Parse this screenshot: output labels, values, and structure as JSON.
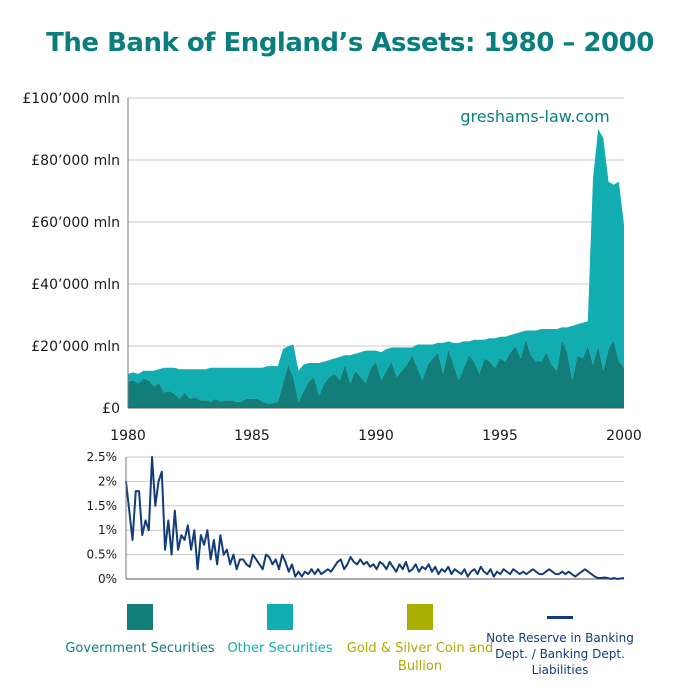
{
  "title": "The Bank of England’s Assets: 1980 – 2000",
  "watermark": "greshams-law.com",
  "colors": {
    "title": "#0a7e7e",
    "government": "#137d7a",
    "other": "#11adb0",
    "gold": "#a9ae00",
    "reserve": "#133d7a"
  },
  "chart_data": [
    {
      "type": "area",
      "stacked": true,
      "x_start": 1980,
      "x_end": 2000,
      "xlim": [
        1980,
        2000
      ],
      "ylim": [
        0,
        100000
      ],
      "x_ticks": [
        "1980",
        "1985",
        "1990",
        "1995",
        "2000"
      ],
      "y_ticks": [
        "£0",
        "£20’000 mln",
        "£40’000 mln",
        "£60’000 mln",
        "£80’000 mln",
        "£100’000 mln"
      ],
      "grid": true,
      "series": [
        {
          "name": "Government Securities",
          "values": [
            8500,
            9000,
            8000,
            9500,
            9000,
            7000,
            8000,
            5000,
            5500,
            4500,
            3000,
            5000,
            3000,
            3500,
            2500,
            2500,
            2000,
            3000,
            2000,
            2500,
            2500,
            2000,
            2000,
            3000,
            3000,
            3000,
            2000,
            1500,
            1500,
            2000,
            8000,
            14000,
            10000,
            2000,
            5500,
            8500,
            10000,
            4000,
            8000,
            10000,
            11000,
            9000,
            14000,
            8000,
            12000,
            10000,
            8000,
            13000,
            15000,
            9000,
            12000,
            15000,
            10000,
            12000,
            14000,
            17000,
            13000,
            9000,
            14000,
            16000,
            18000,
            11000,
            19000,
            14000,
            9000,
            13000,
            17000,
            15000,
            11000,
            16000,
            15000,
            13000,
            16000,
            15000,
            18000,
            20000,
            16000,
            22000,
            17000,
            15000,
            15000,
            18000,
            14000,
            12000,
            22000,
            18000,
            9000,
            17000,
            16000,
            20000,
            14000,
            20000,
            12000,
            19000,
            22000,
            15000,
            13000
          ]
        },
        {
          "name": "Other Securities",
          "values": [
            2500,
            2500,
            3000,
            2500,
            3000,
            5000,
            4500,
            8000,
            7500,
            8500,
            9500,
            7500,
            9500,
            9000,
            10000,
            10000,
            11000,
            10000,
            11000,
            10500,
            10500,
            11000,
            11000,
            10000,
            10000,
            10000,
            11000,
            12000,
            12000,
            11500,
            11000,
            6000,
            10500,
            10000,
            8500,
            6000,
            4500,
            10500,
            7000,
            5500,
            5000,
            7500,
            3000,
            9000,
            5500,
            8000,
            10500,
            5500,
            3500,
            9000,
            7000,
            4500,
            9500,
            7500,
            5500,
            2500,
            7500,
            11500,
            6500,
            4500,
            3000,
            10000,
            2500,
            7000,
            12000,
            8500,
            4500,
            7000,
            11000,
            6000,
            7500,
            9500,
            7000,
            8000,
            5500,
            4000,
            8500,
            3000,
            8000,
            10000,
            10500,
            7500,
            11500,
            13500,
            4000,
            8000,
            17500,
            10000,
            11500,
            8000,
            60000,
            70000,
            75000,
            54000,
            50000,
            58000,
            46000
          ]
        },
        {
          "name": "Gold & Silver Coin and Bullion",
          "values": [
            0,
            0,
            0,
            0,
            0,
            0,
            0,
            0,
            0,
            0,
            0,
            0,
            0,
            0,
            0,
            0,
            0,
            0,
            0,
            0,
            0,
            0,
            0,
            0,
            0,
            0,
            0,
            0,
            0,
            0,
            0,
            0,
            0,
            0,
            0,
            0,
            0,
            0,
            0,
            0,
            0,
            0,
            0,
            0,
            0,
            0,
            0,
            0,
            0,
            0,
            0,
            0,
            0,
            0,
            0,
            0,
            0,
            0,
            0,
            0,
            0,
            0,
            0,
            0,
            0,
            0,
            0,
            0,
            0,
            0,
            0,
            0,
            0,
            0,
            0,
            0,
            0,
            0,
            0,
            0,
            0,
            0,
            0,
            0,
            0,
            0,
            0,
            0,
            0,
            0,
            0,
            0,
            0,
            0,
            0,
            0,
            0
          ]
        }
      ]
    },
    {
      "type": "line",
      "x_start": 1980,
      "x_end": 2000,
      "ylim": [
        0,
        2.5
      ],
      "y_ticks": [
        "0%",
        "0.5%",
        "1%",
        "1.5%",
        "2%",
        "2.5%"
      ],
      "grid": true,
      "series": [
        {
          "name": "Note Reserve in Banking Dept. / Banking Dept. Liabilities",
          "values": [
            2.0,
            1.4,
            0.8,
            1.8,
            1.8,
            0.9,
            1.2,
            1.0,
            2.5,
            1.5,
            2.0,
            2.2,
            0.6,
            1.2,
            0.5,
            1.4,
            0.6,
            0.9,
            0.8,
            1.1,
            0.6,
            1.0,
            0.2,
            0.9,
            0.7,
            1.0,
            0.4,
            0.8,
            0.3,
            0.9,
            0.5,
            0.6,
            0.3,
            0.5,
            0.2,
            0.4,
            0.4,
            0.3,
            0.25,
            0.5,
            0.4,
            0.3,
            0.2,
            0.5,
            0.45,
            0.3,
            0.4,
            0.2,
            0.5,
            0.35,
            0.15,
            0.3,
            0.05,
            0.15,
            0.05,
            0.15,
            0.1,
            0.2,
            0.1,
            0.2,
            0.1,
            0.15,
            0.2,
            0.15,
            0.25,
            0.35,
            0.4,
            0.2,
            0.3,
            0.45,
            0.35,
            0.3,
            0.4,
            0.3,
            0.35,
            0.25,
            0.3,
            0.2,
            0.35,
            0.3,
            0.2,
            0.35,
            0.25,
            0.15,
            0.3,
            0.2,
            0.35,
            0.15,
            0.2,
            0.3,
            0.15,
            0.25,
            0.2,
            0.3,
            0.15,
            0.25,
            0.1,
            0.2,
            0.15,
            0.25,
            0.1,
            0.2,
            0.15,
            0.1,
            0.2,
            0.05,
            0.15,
            0.2,
            0.1,
            0.25,
            0.15,
            0.1,
            0.2,
            0.05,
            0.15,
            0.1,
            0.2,
            0.15,
            0.1,
            0.2,
            0.15,
            0.1,
            0.15,
            0.1,
            0.15,
            0.2,
            0.15,
            0.1,
            0.1,
            0.15,
            0.2,
            0.15,
            0.1,
            0.1,
            0.15,
            0.1,
            0.15,
            0.1,
            0.05,
            0.1,
            0.15,
            0.2,
            0.15,
            0.1,
            0.05,
            0.02,
            0.02,
            0.03,
            0.02,
            0.0,
            0.02,
            0.0,
            0.01,
            0.02
          ]
        }
      ]
    }
  ],
  "legend": {
    "government": "Government Securities",
    "other": "Other Securities",
    "gold": "Gold & Silver Coin and Bullion",
    "reserve": "Note Reserve in Banking Dept. / Banking Dept. Liabilities"
  }
}
